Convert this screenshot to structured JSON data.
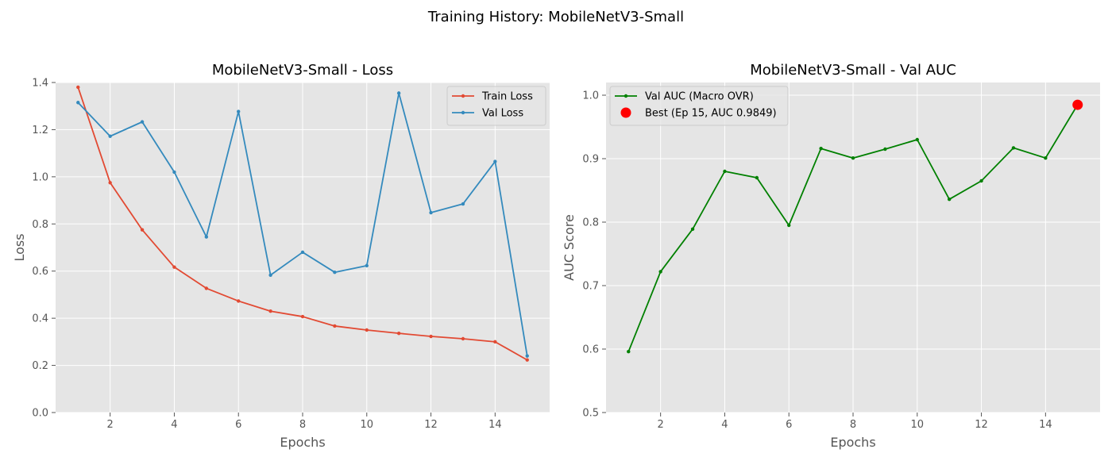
{
  "figure": {
    "suptitle": "Training History: MobileNetV3-Small"
  },
  "chart_data": [
    {
      "type": "line",
      "title": "MobileNetV3-Small - Loss",
      "xlabel": "Epochs",
      "ylabel": "Loss",
      "xlim": [
        0.3,
        15.7
      ],
      "ylim": [
        0.0,
        1.4
      ],
      "xticks": [
        2,
        4,
        6,
        8,
        10,
        12,
        14
      ],
      "yticks": [
        0.0,
        0.2,
        0.4,
        0.6,
        0.8,
        1.0,
        1.2,
        1.4
      ],
      "ytick_decimals": 1,
      "grid": true,
      "legend_position": "top-right",
      "x": [
        1,
        2,
        3,
        4,
        5,
        6,
        7,
        8,
        9,
        10,
        11,
        12,
        13,
        14,
        15
      ],
      "series": [
        {
          "name": "Train Loss",
          "color": "#E24A33",
          "values": [
            1.38,
            0.975,
            0.775,
            0.617,
            0.527,
            0.473,
            0.43,
            0.407,
            0.367,
            0.35,
            0.336,
            0.323,
            0.313,
            0.3,
            0.223
          ]
        },
        {
          "name": "Val Loss",
          "color": "#348ABD",
          "values": [
            1.315,
            1.172,
            1.233,
            1.02,
            0.745,
            1.277,
            0.583,
            0.68,
            0.595,
            0.623,
            1.355,
            0.848,
            0.885,
            1.065,
            0.24
          ]
        }
      ]
    },
    {
      "type": "line",
      "title": "MobileNetV3-Small - Val AUC",
      "xlabel": "Epochs",
      "ylabel": "AUC Score",
      "xlim": [
        0.3,
        15.7
      ],
      "ylim": [
        0.5,
        1.02
      ],
      "xticks": [
        2,
        4,
        6,
        8,
        10,
        12,
        14
      ],
      "yticks": [
        0.5,
        0.6,
        0.7,
        0.8,
        0.9,
        1.0
      ],
      "ytick_decimals": 1,
      "grid": true,
      "legend_position": "top-left",
      "x": [
        1,
        2,
        3,
        4,
        5,
        6,
        7,
        8,
        9,
        10,
        11,
        12,
        13,
        14,
        15
      ],
      "series": [
        {
          "name": "Val AUC (Macro OVR)",
          "color": "#008000",
          "values": [
            0.596,
            0.722,
            0.789,
            0.88,
            0.87,
            0.795,
            0.916,
            0.901,
            0.915,
            0.93,
            0.836,
            0.865,
            0.917,
            0.901,
            0.985
          ]
        }
      ],
      "highlight": {
        "name": "Best (Ep 15, AUC 0.9849)",
        "x": 15,
        "y": 0.9849,
        "color": "#FF0000"
      }
    }
  ]
}
